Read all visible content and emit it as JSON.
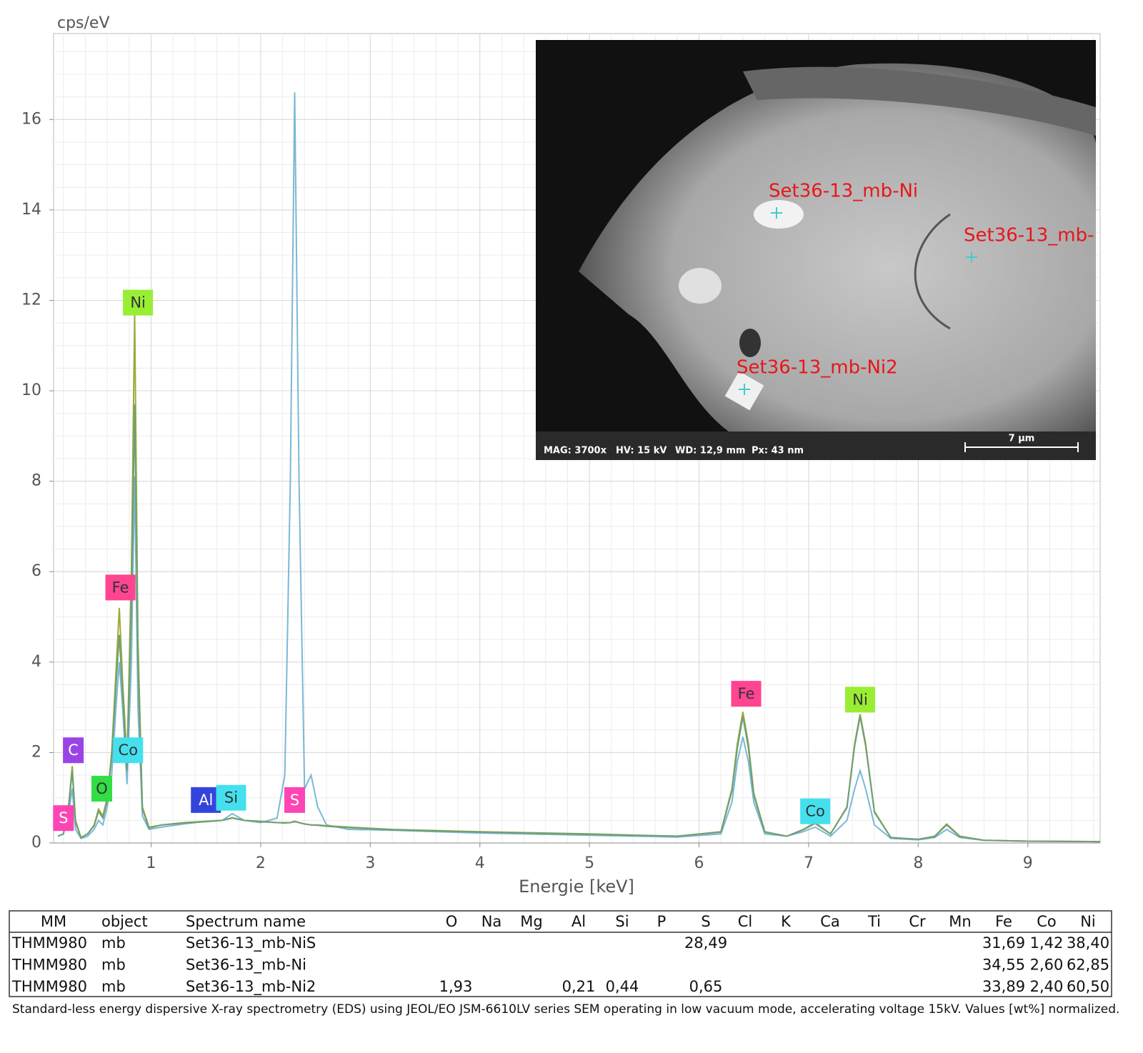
{
  "chart_data": {
    "type": "line",
    "y_label": "cps/eV",
    "x_label": "Energie [keV]",
    "xlim": [
      0.11,
      9.66
    ],
    "ylim": [
      0,
      17.9
    ],
    "xticks": [
      1,
      2,
      3,
      4,
      5,
      6,
      7,
      8,
      9
    ],
    "yticks": [
      0,
      2,
      4,
      6,
      8,
      10,
      12,
      14,
      16
    ],
    "grid": true,
    "x": [
      0.15,
      0.2,
      0.25,
      0.28,
      0.31,
      0.36,
      0.42,
      0.48,
      0.52,
      0.56,
      0.6,
      0.64,
      0.68,
      0.71,
      0.74,
      0.78,
      0.82,
      0.85,
      0.88,
      0.92,
      0.98,
      1.1,
      1.3,
      1.5,
      1.65,
      1.74,
      1.85,
      2.0,
      2.15,
      2.22,
      2.27,
      2.31,
      2.35,
      2.4,
      2.46,
      2.52,
      2.6,
      2.8,
      3.2,
      4,
      5,
      5.8,
      6.2,
      6.3,
      6.35,
      6.4,
      6.45,
      6.5,
      6.6,
      6.8,
      6.95,
      7.06,
      7.2,
      7.35,
      7.42,
      7.47,
      7.52,
      7.6,
      7.75,
      8.0,
      8.15,
      8.26,
      8.38,
      8.6,
      9.0,
      9.66
    ],
    "series": [
      {
        "color": "#7ab8d6",
        "values": [
          0.15,
          0.2,
          0.7,
          1.2,
          0.3,
          0.1,
          0.15,
          0.3,
          0.5,
          0.4,
          0.8,
          1.5,
          3.0,
          4.0,
          3.0,
          1.3,
          4.0,
          8.1,
          3.0,
          0.6,
          0.3,
          0.35,
          0.42,
          0.48,
          0.5,
          0.65,
          0.5,
          0.45,
          0.55,
          1.5,
          8.0,
          16.6,
          8.0,
          1.2,
          1.5,
          0.8,
          0.4,
          0.3,
          0.28,
          0.22,
          0.17,
          0.13,
          0.2,
          0.9,
          1.8,
          2.35,
          1.8,
          0.9,
          0.2,
          0.15,
          0.25,
          0.35,
          0.15,
          0.5,
          1.2,
          1.6,
          1.2,
          0.4,
          0.1,
          0.07,
          0.12,
          0.3,
          0.12,
          0.06,
          0.04,
          0.03
        ]
      },
      {
        "color": "#9aab3a",
        "values": [
          0.15,
          0.2,
          0.9,
          1.7,
          0.5,
          0.12,
          0.2,
          0.4,
          0.75,
          0.6,
          1.0,
          2.0,
          3.8,
          5.2,
          3.6,
          1.8,
          6.0,
          11.7,
          4.5,
          0.8,
          0.35,
          0.4,
          0.45,
          0.48,
          0.5,
          0.55,
          0.5,
          0.48,
          0.45,
          0.45,
          0.45,
          0.48,
          0.45,
          0.42,
          0.4,
          0.4,
          0.38,
          0.35,
          0.3,
          0.25,
          0.2,
          0.15,
          0.25,
          1.2,
          2.2,
          2.9,
          2.2,
          1.1,
          0.25,
          0.15,
          0.3,
          0.45,
          0.2,
          0.8,
          2.2,
          2.85,
          2.2,
          0.7,
          0.12,
          0.08,
          0.15,
          0.42,
          0.15,
          0.06,
          0.04,
          0.03
        ]
      },
      {
        "color": "#6f9e78",
        "values": [
          0.15,
          0.2,
          0.85,
          1.6,
          0.45,
          0.12,
          0.2,
          0.38,
          0.7,
          0.55,
          0.95,
          1.9,
          3.5,
          4.6,
          3.3,
          1.6,
          5.2,
          9.7,
          4.0,
          0.75,
          0.33,
          0.4,
          0.44,
          0.47,
          0.5,
          0.56,
          0.5,
          0.47,
          0.45,
          0.44,
          0.45,
          0.47,
          0.45,
          0.42,
          0.4,
          0.39,
          0.37,
          0.34,
          0.29,
          0.24,
          0.19,
          0.15,
          0.24,
          1.15,
          2.1,
          2.8,
          2.1,
          1.05,
          0.24,
          0.15,
          0.29,
          0.43,
          0.2,
          0.78,
          2.15,
          2.8,
          2.15,
          0.68,
          0.12,
          0.08,
          0.14,
          0.4,
          0.14,
          0.06,
          0.04,
          0.03
        ]
      }
    ],
    "annotations": [
      {
        "text": "S",
        "x": 0.2,
        "y": 0.55,
        "color": "#ff44b4",
        "text_color": "#ffffff"
      },
      {
        "text": "C",
        "x": 0.29,
        "y": 2.05,
        "color": "#9a44e6",
        "text_color": "#ffffff"
      },
      {
        "text": "O",
        "x": 0.55,
        "y": 1.2,
        "color": "#33dd44",
        "text_color": "#333333"
      },
      {
        "text": "Fe",
        "x": 0.72,
        "y": 5.65,
        "color": "#ff4490",
        "text_color": "#333333"
      },
      {
        "text": "Ni",
        "x": 0.88,
        "y": 11.95,
        "color": "#99ee33",
        "text_color": "#333333"
      },
      {
        "text": "Co",
        "x": 0.79,
        "y": 2.05,
        "color": "#44e0ee",
        "text_color": "#333333"
      },
      {
        "text": "Al",
        "x": 1.5,
        "y": 0.95,
        "color": "#3344dd",
        "text_color": "#ffffff"
      },
      {
        "text": "Si",
        "x": 1.73,
        "y": 1.0,
        "color": "#44e0ee",
        "text_color": "#333333"
      },
      {
        "text": "S",
        "x": 2.31,
        "y": 0.95,
        "color": "#ff44b4",
        "text_color": "#ffffff"
      },
      {
        "text": "Fe",
        "x": 6.43,
        "y": 3.3,
        "color": "#ff4490",
        "text_color": "#333333"
      },
      {
        "text": "Co",
        "x": 7.06,
        "y": 0.7,
        "color": "#44e0ee",
        "text_color": "#333333"
      },
      {
        "text": "Ni",
        "x": 7.47,
        "y": 3.17,
        "color": "#99ee33",
        "text_color": "#333333"
      }
    ]
  },
  "inset": {
    "points": [
      "Set36-13_mb-Ni",
      "Set36-13_mb-",
      "Set36-13_mb-Ni2"
    ],
    "info": [
      "MAG: 3700x",
      "HV: 15 kV",
      "WD: 12,9 mm",
      "Px: 43 nm"
    ],
    "scale": "7 µm"
  },
  "table": {
    "columns": [
      "MM",
      "object",
      "Spectrum name",
      "O",
      "Na",
      "Mg",
      "Al",
      "Si",
      "P",
      "S",
      "Cl",
      "K",
      "Ca",
      "Ti",
      "Cr",
      "Mn",
      "Fe",
      "Co",
      "Ni"
    ],
    "rows": [
      [
        "THMM980",
        "mb",
        "Set36-13_mb-NiS",
        null,
        null,
        null,
        null,
        null,
        null,
        "28,49",
        null,
        null,
        null,
        null,
        null,
        null,
        "31,69",
        "1,42",
        "38,40"
      ],
      [
        "THMM980",
        "mb",
        "Set36-13_mb-Ni",
        null,
        null,
        null,
        null,
        null,
        null,
        null,
        null,
        null,
        null,
        null,
        null,
        null,
        "34,55",
        "2,60",
        "62,85"
      ],
      [
        "THMM980",
        "mb",
        "Set36-13_mb-Ni2",
        "1,93",
        null,
        null,
        "0,21",
        "0,44",
        null,
        "0,65",
        null,
        null,
        null,
        null,
        null,
        null,
        "33,89",
        "2,40",
        "60,50"
      ]
    ]
  },
  "note": "Standard-less energy dispersive X-ray spectrometry (EDS) using JEOL/EO JSM-6610LV series SEM operating in low vacuum mode, accelerating voltage 15kV. Values [wt%] normalized."
}
